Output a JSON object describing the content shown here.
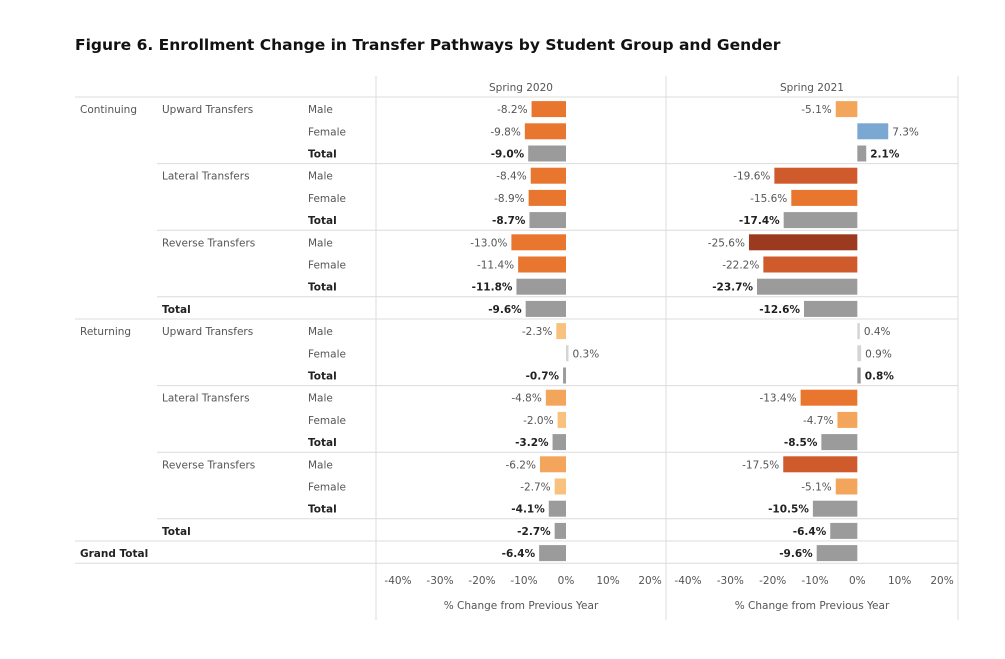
{
  "title": "Figure 6. Enrollment Change in Transfer Pathways by Student Group and Gender",
  "chart_data": {
    "type": "bar",
    "orientation": "horizontal",
    "title": "Figure 6. Enrollment Change in Transfer Pathways by Student Group and Gender",
    "panels": [
      {
        "name": "Spring 2020",
        "xlabel": "% Change from Previous Year",
        "xlim": [
          -40,
          20
        ],
        "ticks": [
          "-40%",
          "-30%",
          "-20%",
          "-10%",
          "0%",
          "10%",
          "20%"
        ]
      },
      {
        "name": "Spring 2021",
        "xlabel": "% Change from Previous Year",
        "xlim": [
          -40,
          20
        ],
        "ticks": [
          "-40%",
          "-30%",
          "-20%",
          "-10%",
          "0%",
          "10%",
          "20%"
        ]
      }
    ],
    "color_scale": {
      "strong_negative": "#9c3a20",
      "mid_negative": "#cf5a2c",
      "negative": "#e8762f",
      "light_negative": "#f4a55c",
      "very_light_negative": "#f8c27e",
      "near_zero": "#d5d5d5",
      "positive": "#7ba7d3",
      "total": "#9b9b9b"
    },
    "rows": [
      {
        "group": "Continuing",
        "pathway": "Upward Transfers",
        "sub": "Male",
        "bold": false,
        "v2020": -8.2,
        "l2020": "-8.2%",
        "v2021": -5.1,
        "l2021": "-5.1%"
      },
      {
        "group": "",
        "pathway": "",
        "sub": "Female",
        "bold": false,
        "v2020": -9.8,
        "l2020": "-9.8%",
        "v2021": 7.3,
        "l2021": "7.3%"
      },
      {
        "group": "",
        "pathway": "",
        "sub": "Total",
        "bold": true,
        "v2020": -9.0,
        "l2020": "-9.0%",
        "v2021": 2.1,
        "l2021": "2.1%"
      },
      {
        "group": "",
        "pathway": "Lateral Transfers",
        "sub": "Male",
        "bold": false,
        "v2020": -8.4,
        "l2020": "-8.4%",
        "v2021": -19.6,
        "l2021": "-19.6%"
      },
      {
        "group": "",
        "pathway": "",
        "sub": "Female",
        "bold": false,
        "v2020": -8.9,
        "l2020": "-8.9%",
        "v2021": -15.6,
        "l2021": "-15.6%"
      },
      {
        "group": "",
        "pathway": "",
        "sub": "Total",
        "bold": true,
        "v2020": -8.7,
        "l2020": "-8.7%",
        "v2021": -17.4,
        "l2021": "-17.4%"
      },
      {
        "group": "",
        "pathway": "Reverse Transfers",
        "sub": "Male",
        "bold": false,
        "v2020": -13.0,
        "l2020": "-13.0%",
        "v2021": -25.6,
        "l2021": "-25.6%"
      },
      {
        "group": "",
        "pathway": "",
        "sub": "Female",
        "bold": false,
        "v2020": -11.4,
        "l2020": "-11.4%",
        "v2021": -22.2,
        "l2021": "-22.2%"
      },
      {
        "group": "",
        "pathway": "",
        "sub": "Total",
        "bold": true,
        "v2020": -11.8,
        "l2020": "-11.8%",
        "v2021": -23.7,
        "l2021": "-23.7%"
      },
      {
        "group": "",
        "pathway": "Total",
        "sub": "",
        "bold": true,
        "v2020": -9.6,
        "l2020": "-9.6%",
        "v2021": -12.6,
        "l2021": "-12.6%"
      },
      {
        "group": "Returning",
        "pathway": "Upward Transfers",
        "sub": "Male",
        "bold": false,
        "v2020": -2.3,
        "l2020": "-2.3%",
        "v2021": 0.4,
        "l2021": "0.4%"
      },
      {
        "group": "",
        "pathway": "",
        "sub": "Female",
        "bold": false,
        "v2020": 0.3,
        "l2020": "0.3%",
        "v2021": 0.9,
        "l2021": "0.9%"
      },
      {
        "group": "",
        "pathway": "",
        "sub": "Total",
        "bold": true,
        "v2020": -0.7,
        "l2020": "-0.7%",
        "v2021": 0.8,
        "l2021": "0.8%"
      },
      {
        "group": "",
        "pathway": "Lateral Transfers",
        "sub": "Male",
        "bold": false,
        "v2020": -4.8,
        "l2020": "-4.8%",
        "v2021": -13.4,
        "l2021": "-13.4%"
      },
      {
        "group": "",
        "pathway": "",
        "sub": "Female",
        "bold": false,
        "v2020": -2.0,
        "l2020": "-2.0%",
        "v2021": -4.7,
        "l2021": "-4.7%"
      },
      {
        "group": "",
        "pathway": "",
        "sub": "Total",
        "bold": true,
        "v2020": -3.2,
        "l2020": "-3.2%",
        "v2021": -8.5,
        "l2021": "-8.5%"
      },
      {
        "group": "",
        "pathway": "Reverse Transfers",
        "sub": "Male",
        "bold": false,
        "v2020": -6.2,
        "l2020": "-6.2%",
        "v2021": -17.5,
        "l2021": "-17.5%"
      },
      {
        "group": "",
        "pathway": "",
        "sub": "Female",
        "bold": false,
        "v2020": -2.7,
        "l2020": "-2.7%",
        "v2021": -5.1,
        "l2021": "-5.1%"
      },
      {
        "group": "",
        "pathway": "",
        "sub": "Total",
        "bold": true,
        "v2020": -4.1,
        "l2020": "-4.1%",
        "v2021": -10.5,
        "l2021": "-10.5%"
      },
      {
        "group": "",
        "pathway": "Total",
        "sub": "",
        "bold": true,
        "v2020": -2.7,
        "l2020": "-2.7%",
        "v2021": -6.4,
        "l2021": "-6.4%"
      },
      {
        "group": "Grand Total",
        "pathway": "",
        "sub": "",
        "bold": true,
        "v2020": -6.4,
        "l2020": "-6.4%",
        "v2021": -9.6,
        "l2021": "-9.6%"
      }
    ]
  }
}
